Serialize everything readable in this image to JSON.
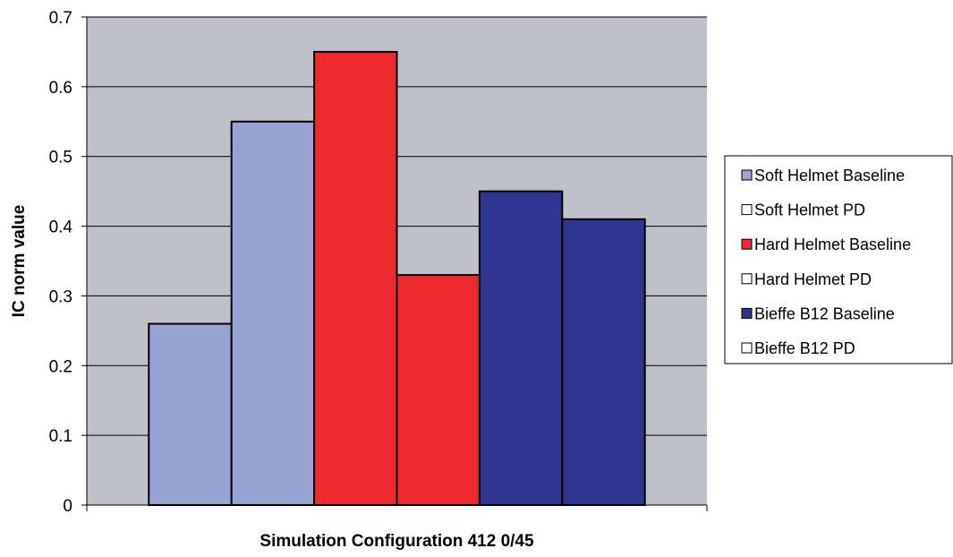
{
  "chart_data": {
    "type": "bar",
    "title": "",
    "xlabel": "Simulation Configuration 412 0/45",
    "ylabel": "IC norm value",
    "ylim": [
      0,
      0.7
    ],
    "yticks": [
      "0",
      "0.1",
      "0.2",
      "0.3",
      "0.4",
      "0.5",
      "0.6",
      "0.7"
    ],
    "grid": true,
    "plot_background": "#c0c0c8",
    "legend_position": "right",
    "series": [
      {
        "name": "Soft Helmet Baseline",
        "values": [
          0.26
        ],
        "color": "#98a4d4"
      },
      {
        "name": "Soft Helmet PD",
        "values": [
          0.55
        ],
        "color": "#98a4d4"
      },
      {
        "name": "Hard Helmet Baseline",
        "values": [
          0.65
        ],
        "color": "#ec2a2e"
      },
      {
        "name": "Hard Helmet PD",
        "values": [
          0.33
        ],
        "color": "#ec2a2e"
      },
      {
        "name": "Bieffe B12 Baseline",
        "values": [
          0.45
        ],
        "color": "#2e3590"
      },
      {
        "name": "Bieffe B12 PD",
        "values": [
          0.41
        ],
        "color": "#2e3590"
      }
    ],
    "legend": [
      {
        "label": "Soft Helmet Baseline",
        "swatch": "#98a4d4"
      },
      {
        "label": "Soft Helmet PD",
        "swatch": "#ffffff"
      },
      {
        "label": "Hard Helmet Baseline",
        "swatch": "#ec2a2e"
      },
      {
        "label": "Hard Helmet PD",
        "swatch": "#ffffff"
      },
      {
        "label": "Bieffe B12 Baseline",
        "swatch": "#2e3590"
      },
      {
        "label": "Bieffe B12 PD",
        "swatch": "#ffffff"
      }
    ]
  }
}
